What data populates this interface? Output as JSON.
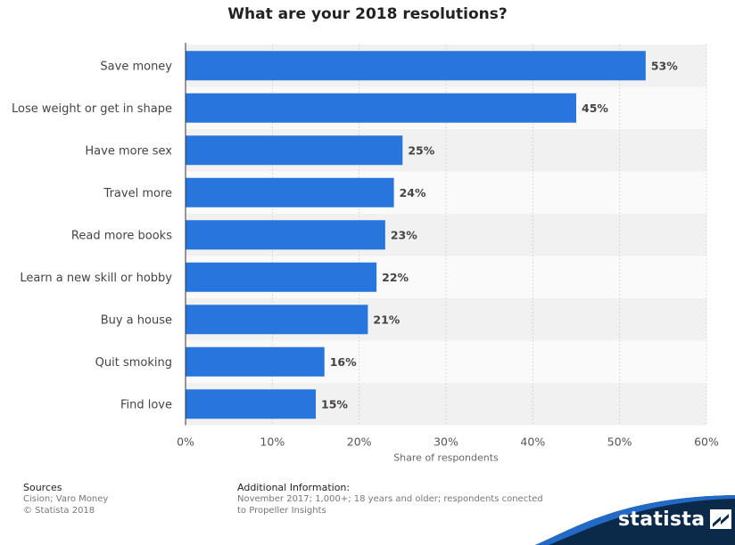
{
  "chart_data": {
    "type": "bar",
    "orientation": "horizontal",
    "title": "What are your 2018 resolutions?",
    "categories": [
      "Save money",
      "Lose weight or get in shape",
      "Have more sex",
      "Travel more",
      "Read more books",
      "Learn a new skill or hobby",
      "Buy a house",
      "Quit smoking",
      "Find love"
    ],
    "values": [
      53,
      45,
      25,
      24,
      23,
      22,
      21,
      16,
      15
    ],
    "value_labels": [
      "53%",
      "45%",
      "25%",
      "24%",
      "23%",
      "22%",
      "21%",
      "16%",
      "15%"
    ],
    "xlabel": "Share of respondents",
    "ylabel": "",
    "xlim": [
      0,
      60
    ],
    "x_ticks": [
      0,
      10,
      20,
      30,
      40,
      50,
      60
    ],
    "x_tick_labels": [
      "0%",
      "10%",
      "20%",
      "30%",
      "40%",
      "50%",
      "60%"
    ],
    "grid": true,
    "bar_color": "#2876dd"
  },
  "footer": {
    "sources_heading": "Sources",
    "sources_line1": "Cision; Varo Money",
    "sources_line2": "© Statista 2018",
    "additional_heading": "Additional Information:",
    "additional_line1": "November 2017; 1,000+; 18 years and older; respondents conected",
    "additional_line2": "to Propeller Insights"
  },
  "brand": {
    "name": "statista",
    "logo_icon": "statista-logo-icon",
    "wave_color": "#0b2a4a",
    "accent_color": "#2876dd"
  }
}
